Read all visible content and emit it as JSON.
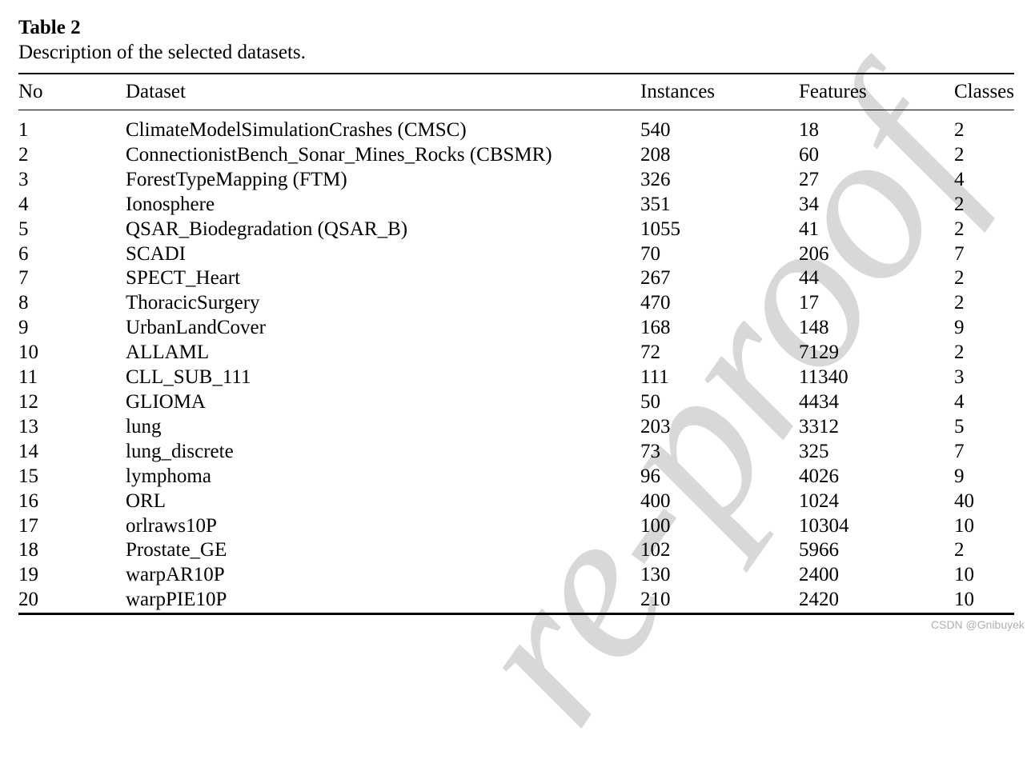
{
  "caption": {
    "label": "Table 2",
    "description": "Description of the selected datasets."
  },
  "table": {
    "columns": [
      "No",
      "Dataset",
      "Instances",
      "Features",
      "Classes"
    ],
    "rows": [
      [
        "1",
        "ClimateModelSimulationCrashes (CMSC)",
        "540",
        "18",
        "2"
      ],
      [
        "2",
        "ConnectionistBench_Sonar_Mines_Rocks (CBSMR)",
        "208",
        "60",
        "2"
      ],
      [
        "3",
        "ForestTypeMapping (FTM)",
        "326",
        "27",
        "4"
      ],
      [
        "4",
        "Ionosphere",
        "351",
        "34",
        "2"
      ],
      [
        "5",
        "QSAR_Biodegradation (QSAR_B)",
        "1055",
        "41",
        "2"
      ],
      [
        "6",
        "SCADI",
        "70",
        "206",
        "7"
      ],
      [
        "7",
        "SPECT_Heart",
        "267",
        "44",
        "2"
      ],
      [
        "8",
        "ThoracicSurgery",
        "470",
        "17",
        "2"
      ],
      [
        "9",
        "UrbanLandCover",
        "168",
        "148",
        "9"
      ],
      [
        "10",
        "ALLAML",
        "72",
        "7129",
        "2"
      ],
      [
        "11",
        "CLL_SUB_111",
        "111",
        "11340",
        "3"
      ],
      [
        "12",
        "GLIOMA",
        "50",
        "4434",
        "4"
      ],
      [
        "13",
        "lung",
        "203",
        "3312",
        "5"
      ],
      [
        "14",
        "lung_discrete",
        "73",
        "325",
        "7"
      ],
      [
        "15",
        "lymphoma",
        "96",
        "4026",
        "9"
      ],
      [
        "16",
        "ORL",
        "400",
        "1024",
        "40"
      ],
      [
        "17",
        "orlraws10P",
        "100",
        "10304",
        "10"
      ],
      [
        "18",
        "Prostate_GE",
        "102",
        "5966",
        "2"
      ],
      [
        "19",
        "warpAR10P",
        "130",
        "2400",
        "10"
      ],
      [
        "20",
        "warpPIE10P",
        "210",
        "2420",
        "10"
      ]
    ]
  },
  "watermark": {
    "text": "re-proof",
    "color": "#d8d8d8"
  },
  "footer": {
    "credit": "CSDN @Gnibuyek",
    "color": "#b0b0b0"
  }
}
